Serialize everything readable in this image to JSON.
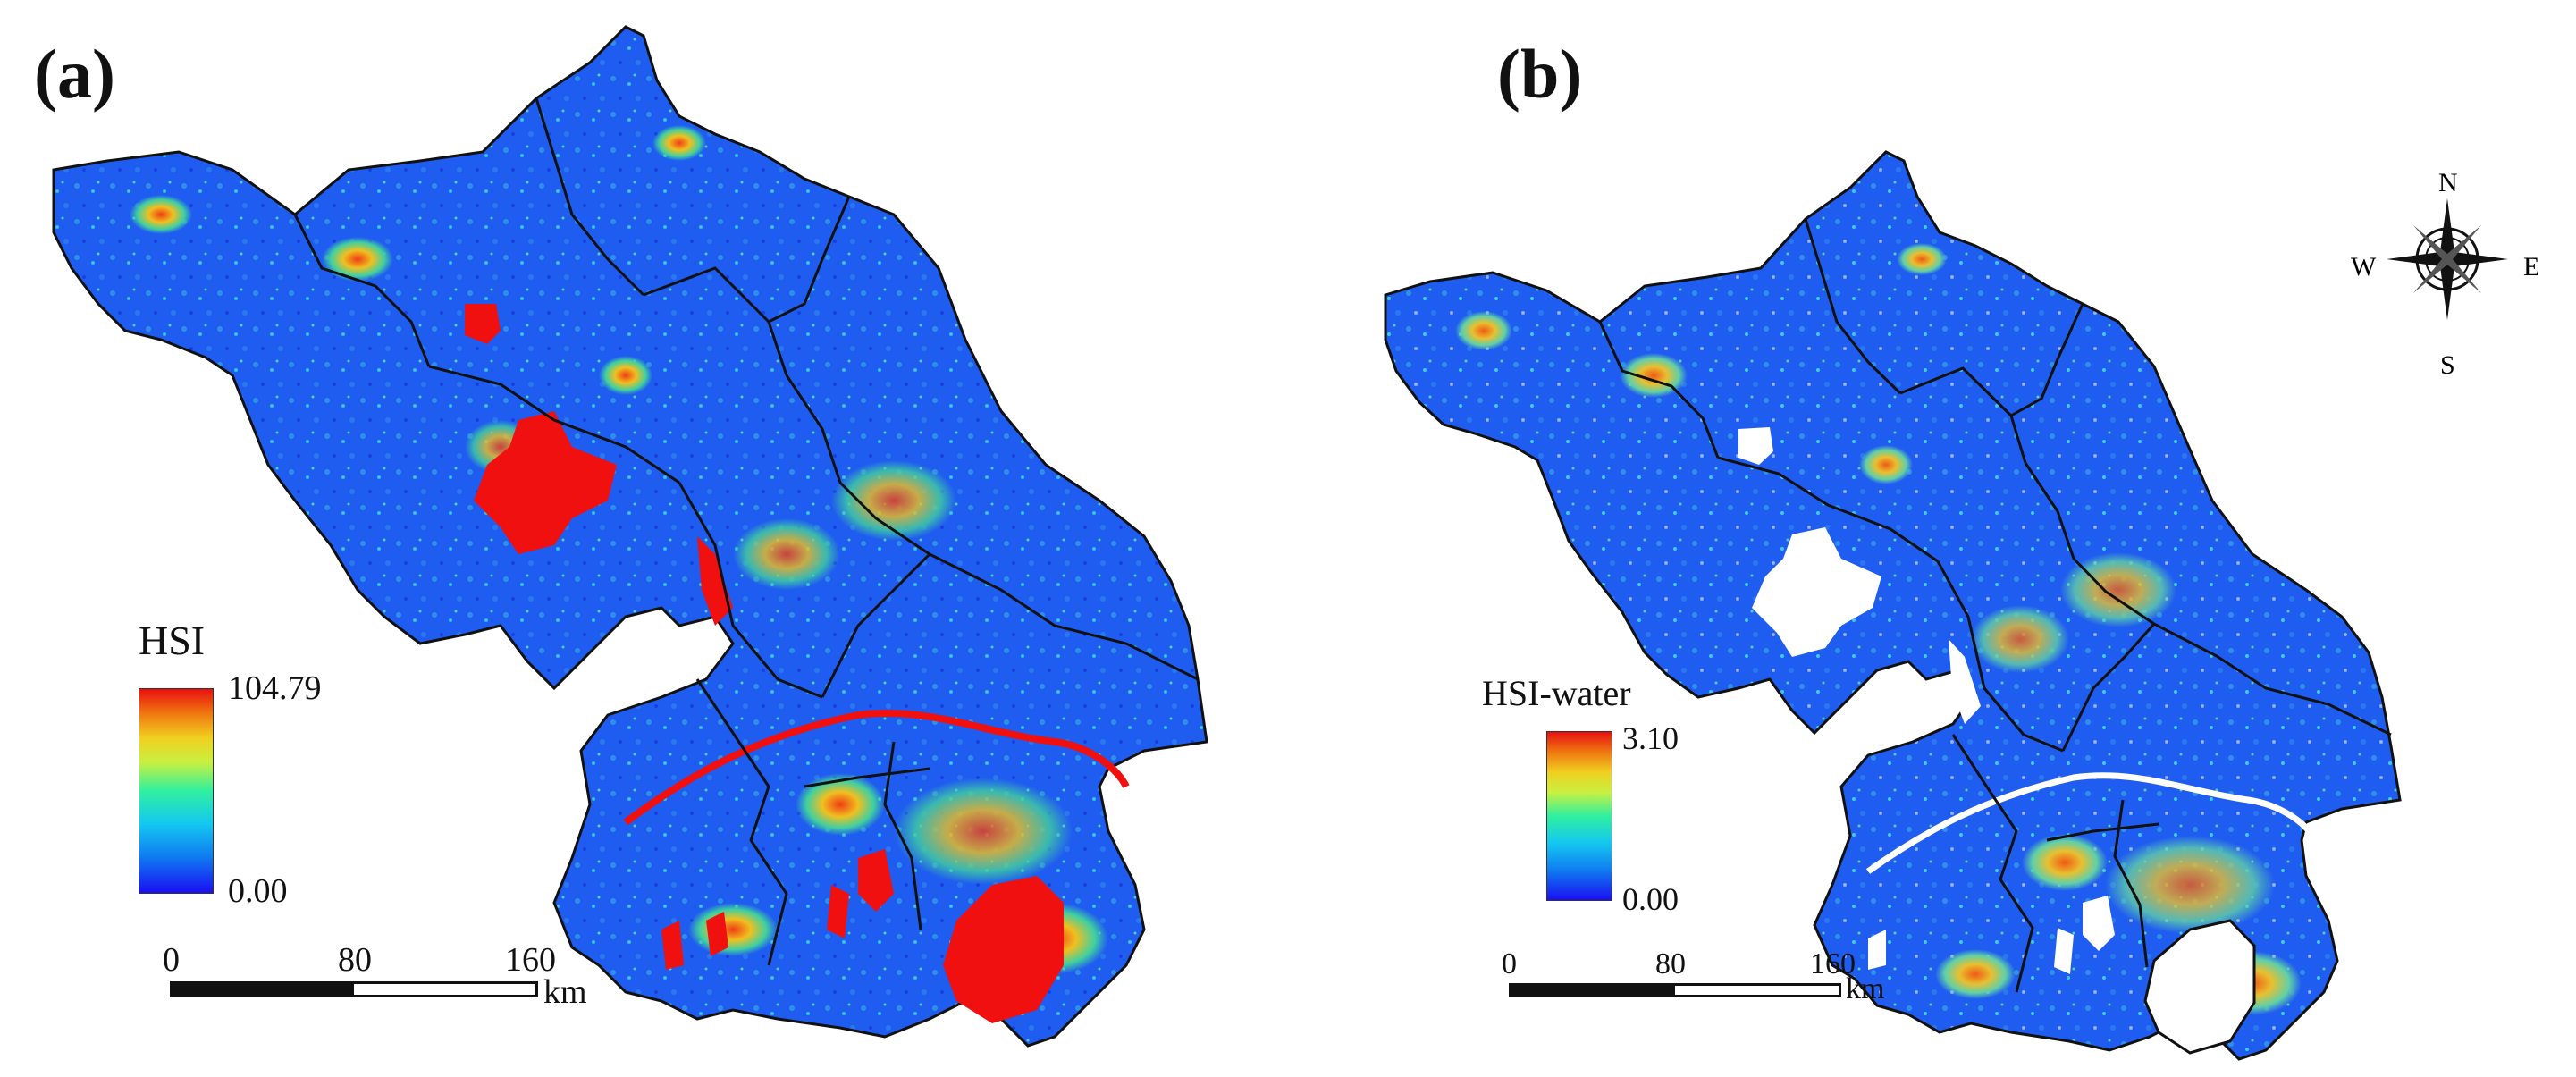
{
  "panels": [
    {
      "label": "(a)",
      "legend_title": "HSI",
      "legend_max": "104.79",
      "legend_min": "0.00",
      "scale": {
        "ticks": [
          "0",
          "80",
          "160"
        ],
        "unit": "km"
      }
    },
    {
      "label": "(b)",
      "legend_title": "HSI-water",
      "legend_max": "3.10",
      "legend_min": "0.00",
      "scale": {
        "ticks": [
          "0",
          "80",
          "160"
        ],
        "unit": "km"
      },
      "compass": {
        "n": "N",
        "s": "S",
        "e": "E",
        "w": "W"
      }
    }
  ],
  "colors": {
    "map_base": "#1e5ff0",
    "map_mid": "#28a0e8",
    "hot": "#f03c14",
    "water": "#f01010",
    "boundary": "#111111"
  },
  "icons": [
    "compass-rose-icon"
  ]
}
